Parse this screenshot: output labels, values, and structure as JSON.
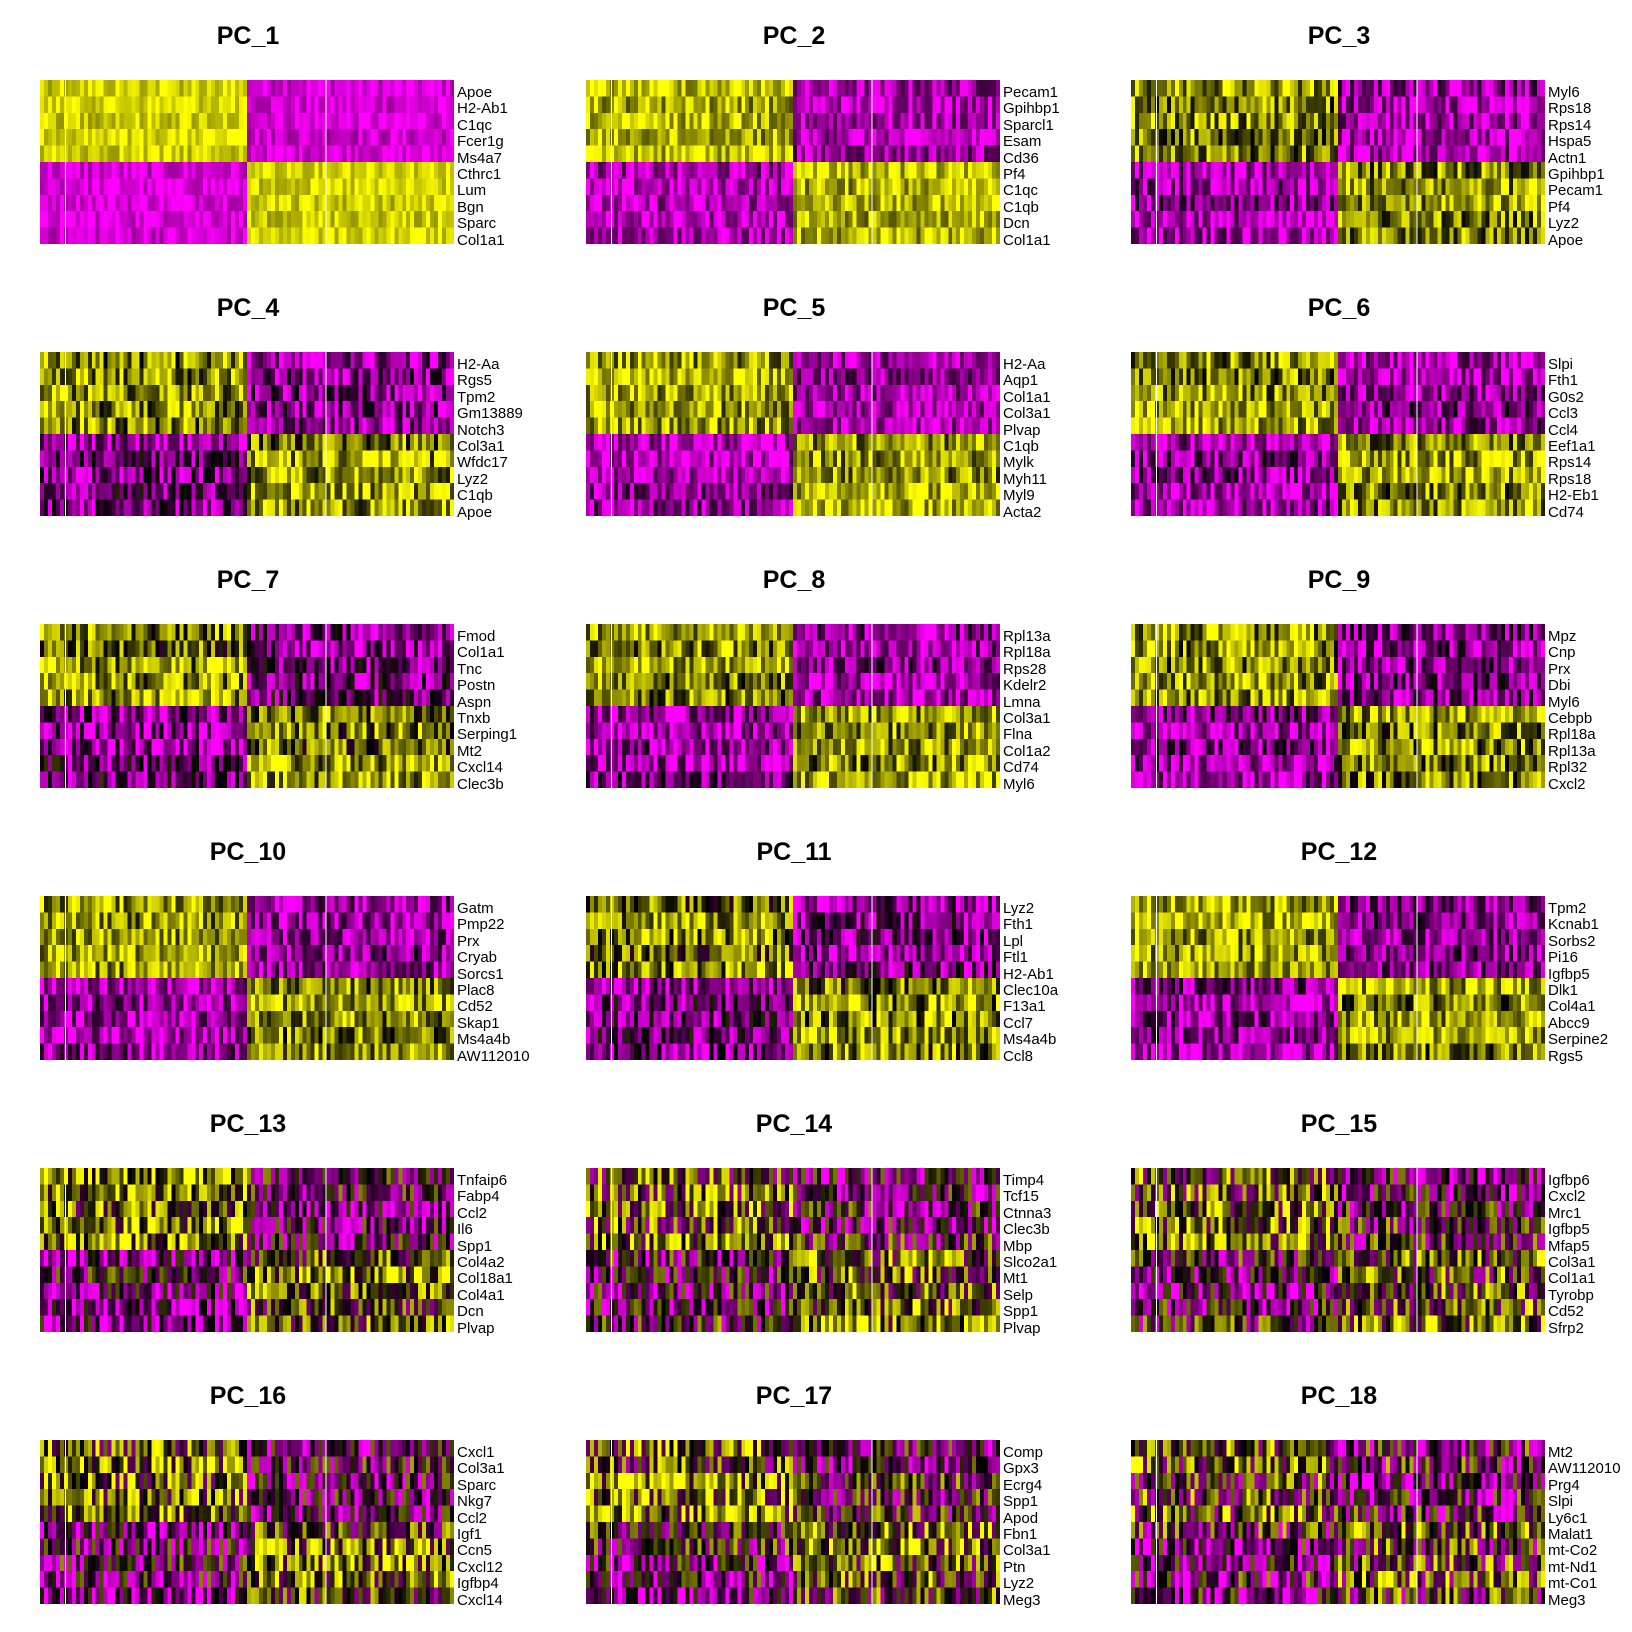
{
  "colors": {
    "high": "#FF00FF",
    "low": "#FFFF00",
    "mid": "#000000",
    "cell_boundary": "#FFFFFF"
  },
  "chart_data": [
    {
      "type": "heatmap",
      "title": "PC_1",
      "genes": [
        "Apoe",
        "H2-Ab1",
        "C1qc",
        "Fcer1g",
        "Ms4a7",
        "Cthrc1",
        "Lum",
        "Bgn",
        "Sparc",
        "Col1a1"
      ],
      "pattern": [
        1,
        1,
        1,
        1,
        1,
        -1,
        -1,
        -1,
        -1,
        -1
      ],
      "strength": 0.85
    },
    {
      "type": "heatmap",
      "title": "PC_2",
      "genes": [
        "Pecam1",
        "Gpihbp1",
        "Sparcl1",
        "Esam",
        "Cd36",
        "Pf4",
        "C1qc",
        "C1qb",
        "Dcn",
        "Col1a1"
      ],
      "pattern": [
        1,
        1,
        1,
        1,
        1,
        -1,
        -1,
        -1,
        -1,
        -1
      ],
      "strength": 0.7
    },
    {
      "type": "heatmap",
      "title": "PC_3",
      "genes": [
        "Myl6",
        "Rps18",
        "Rps14",
        "Hspa5",
        "Actn1",
        "Gpihbp1",
        "Pecam1",
        "Pf4",
        "Lyz2",
        "Apoe"
      ],
      "pattern": [
        1,
        1,
        1,
        1,
        1,
        -1,
        -1,
        -1,
        -1,
        -1
      ],
      "strength": 0.6
    },
    {
      "type": "heatmap",
      "title": "PC_4",
      "genes": [
        "H2-Aa",
        "Rgs5",
        "Tpm2",
        "Gm13889",
        "Notch3",
        "Col3a1",
        "Wfdc17",
        "Lyz2",
        "C1qb",
        "Apoe"
      ],
      "pattern": [
        1,
        1,
        1,
        1,
        1,
        -1,
        -1,
        -1,
        -1,
        -1
      ],
      "strength": 0.55
    },
    {
      "type": "heatmap",
      "title": "PC_5",
      "genes": [
        "H2-Aa",
        "Aqp1",
        "Col1a1",
        "Col3a1",
        "Plvap",
        "C1qb",
        "Mylk",
        "Myh11",
        "Myl9",
        "Acta2"
      ],
      "pattern": [
        1,
        1,
        1,
        1,
        1,
        -1,
        -1,
        -1,
        -1,
        -1
      ],
      "strength": 0.65
    },
    {
      "type": "heatmap",
      "title": "PC_6",
      "genes": [
        "Slpi",
        "Fth1",
        "G0s2",
        "Ccl3",
        "Ccl4",
        "Eef1a1",
        "Rps14",
        "Rps18",
        "H2-Eb1",
        "Cd74"
      ],
      "pattern": [
        1,
        1,
        1,
        1,
        1,
        -1,
        -1,
        -1,
        -1,
        -1
      ],
      "strength": 0.6
    },
    {
      "type": "heatmap",
      "title": "PC_7",
      "genes": [
        "Fmod",
        "Col1a1",
        "Tnc",
        "Postn",
        "Aspn",
        "Tnxb",
        "Serping1",
        "Mt2",
        "Cxcl14",
        "Clec3b"
      ],
      "pattern": [
        1,
        1,
        1,
        1,
        1,
        -1,
        -1,
        -1,
        -1,
        -1
      ],
      "strength": 0.5
    },
    {
      "type": "heatmap",
      "title": "PC_8",
      "genes": [
        "Rpl13a",
        "Rpl18a",
        "Rps28",
        "Kdelr2",
        "Lmna",
        "Col3a1",
        "Flna",
        "Col1a2",
        "Cd74",
        "Myl6"
      ],
      "pattern": [
        1,
        1,
        1,
        1,
        1,
        -1,
        -1,
        -1,
        -1,
        -1
      ],
      "strength": 0.6
    },
    {
      "type": "heatmap",
      "title": "PC_9",
      "genes": [
        "Mpz",
        "Cnp",
        "Prx",
        "Dbi",
        "Myl6",
        "Cebpb",
        "Rpl18a",
        "Rpl13a",
        "Rpl32",
        "Cxcl2"
      ],
      "pattern": [
        1,
        1,
        1,
        1,
        1,
        -1,
        -1,
        -1,
        -1,
        -1
      ],
      "strength": 0.55
    },
    {
      "type": "heatmap",
      "title": "PC_10",
      "genes": [
        "Gatm",
        "Pmp22",
        "Prx",
        "Cryab",
        "Sorcs1",
        "Plac8",
        "Cd52",
        "Skap1",
        "Ms4a4b",
        "AW112010"
      ],
      "pattern": [
        1,
        1,
        1,
        1,
        1,
        -1,
        -1,
        -1,
        -1,
        -1
      ],
      "strength": 0.6
    },
    {
      "type": "heatmap",
      "title": "PC_11",
      "genes": [
        "Lyz2",
        "Fth1",
        "Lpl",
        "Ftl1",
        "H2-Ab1",
        "Clec10a",
        "F13a1",
        "Ccl7",
        "Ms4a4b",
        "Ccl8"
      ],
      "pattern": [
        1,
        1,
        1,
        1,
        1,
        -1,
        -1,
        -1,
        -1,
        -1
      ],
      "strength": 0.5
    },
    {
      "type": "heatmap",
      "title": "PC_12",
      "genes": [
        "Tpm2",
        "Kcnab1",
        "Sorbs2",
        "Pi16",
        "Igfbp5",
        "Dlk1",
        "Col4a1",
        "Abcc9",
        "Serpine2",
        "Rgs5"
      ],
      "pattern": [
        1,
        1,
        1,
        1,
        1,
        -1,
        -1,
        -1,
        -1,
        -1
      ],
      "strength": 0.6
    },
    {
      "type": "heatmap",
      "title": "PC_13",
      "genes": [
        "Tnfaip6",
        "Fabp4",
        "Ccl2",
        "Il6",
        "Spp1",
        "Col4a2",
        "Col18a1",
        "Col4a1",
        "Dcn",
        "Plvap"
      ],
      "pattern": [
        1,
        1,
        1,
        1,
        1,
        -1,
        -1,
        -1,
        -1,
        -1
      ],
      "strength": 0.35
    },
    {
      "type": "heatmap",
      "title": "PC_14",
      "genes": [
        "Timp4",
        "Tcf15",
        "Ctnna3",
        "Clec3b",
        "Mbp",
        "Slco2a1",
        "Mt1",
        "Selp",
        "Spp1",
        "Plvap"
      ],
      "pattern": [
        1,
        1,
        1,
        1,
        1,
        -1,
        -1,
        -1,
        -1,
        -1
      ],
      "strength": 0.25
    },
    {
      "type": "heatmap",
      "title": "PC_15",
      "genes": [
        "Igfbp6",
        "Cxcl2",
        "Mrc1",
        "Igfbp5",
        "Mfap5",
        "Col3a1",
        "Col1a1",
        "Tyrobp",
        "Cd52",
        "Sfrp2"
      ],
      "pattern": [
        1,
        1,
        1,
        1,
        1,
        -1,
        -1,
        -1,
        -1,
        -1
      ],
      "strength": 0.25
    },
    {
      "type": "heatmap",
      "title": "PC_16",
      "genes": [
        "Cxcl1",
        "Col3a1",
        "Sparc",
        "Nkg7",
        "Ccl2",
        "Igf1",
        "Ccn5",
        "Cxcl12",
        "Igfbp4",
        "Cxcl14"
      ],
      "pattern": [
        1,
        1,
        1,
        1,
        1,
        -1,
        -1,
        -1,
        -1,
        -1
      ],
      "strength": 0.3
    },
    {
      "type": "heatmap",
      "title": "PC_17",
      "genes": [
        "Comp",
        "Gpx3",
        "Ecrg4",
        "Spp1",
        "Apod",
        "Fbn1",
        "Col3a1",
        "Ptn",
        "Lyz2",
        "Meg3"
      ],
      "pattern": [
        1,
        1,
        1,
        1,
        1,
        -1,
        -1,
        -1,
        -1,
        -1
      ],
      "strength": 0.25
    },
    {
      "type": "heatmap",
      "title": "PC_18",
      "genes": [
        "Mt2",
        "AW112010",
        "Prg4",
        "Slpi",
        "Ly6c1",
        "Malat1",
        "mt-Co2",
        "mt-Nd1",
        "mt-Co1",
        "Meg3"
      ],
      "pattern": [
        1,
        1,
        1,
        1,
        1,
        -1,
        -1,
        -1,
        -1,
        -1
      ],
      "strength": 0.2
    }
  ]
}
